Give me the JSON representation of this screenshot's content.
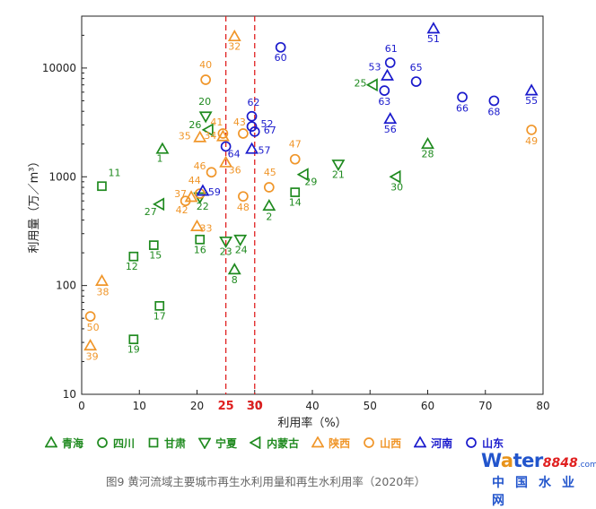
{
  "colors": {
    "qinghai": "#1f8a1f",
    "sichuan": "#1f8a1f",
    "gansu": "#1f8a1f",
    "ningxia": "#1f8a1f",
    "neimenggu": "#1f8a1f",
    "shaanxi": "#f0962a",
    "shanxi": "#f0962a",
    "henan": "#1a1acc",
    "shandong": "#1a1acc",
    "reference": "#e02020"
  },
  "chart_data": {
    "type": "scatter",
    "title": "图9 黄河流域主要城市再生水利用量和再生水利用率（2020年）",
    "xlabel": "利用率（%）",
    "ylabel": "利用量（万／m³）",
    "xlim": [
      0,
      80
    ],
    "ylim": [
      10,
      30000
    ],
    "yscale": "log",
    "x_ticks": [
      "0",
      "10",
      "20",
      "30",
      "40",
      "50",
      "60",
      "70",
      "80"
    ],
    "y_ticks": [
      "10",
      "100",
      "1000",
      "10000"
    ],
    "reference_lines": [
      {
        "x": 25,
        "label": "25"
      },
      {
        "x": 30,
        "label": "30"
      }
    ],
    "series": [
      {
        "name": "青海",
        "marker": "triangle-up",
        "color_key": "qinghai",
        "filled": false,
        "points": [
          {
            "id": "1",
            "x": 14,
            "y": 1800
          },
          {
            "id": "2",
            "x": 32.5,
            "y": 540
          },
          {
            "id": "8",
            "x": 26.5,
            "y": 140
          },
          {
            "id": "28",
            "x": 60,
            "y": 2000
          }
        ]
      },
      {
        "name": "四川",
        "marker": "circle",
        "color_key": "sichuan",
        "filled": false,
        "points": []
      },
      {
        "name": "甘肃",
        "marker": "square",
        "color_key": "gansu",
        "filled": false,
        "points": [
          {
            "id": "11",
            "x": 3.5,
            "y": 820
          },
          {
            "id": "12",
            "x": 9,
            "y": 185
          },
          {
            "id": "14",
            "x": 37,
            "y": 720
          },
          {
            "id": "15",
            "x": 12.5,
            "y": 235
          },
          {
            "id": "16",
            "x": 20.5,
            "y": 265
          },
          {
            "id": "17",
            "x": 13.5,
            "y": 65
          },
          {
            "id": "19",
            "x": 9,
            "y": 32
          }
        ]
      },
      {
        "name": "宁夏",
        "marker": "triangle-down",
        "color_key": "ningxia",
        "filled": false,
        "points": [
          {
            "id": "20",
            "x": 21.5,
            "y": 3600
          },
          {
            "id": "21",
            "x": 44.5,
            "y": 1300
          },
          {
            "id": "22",
            "x": 20.5,
            "y": 650
          },
          {
            "id": "23",
            "x": 25,
            "y": 255
          },
          {
            "id": "24",
            "x": 27.5,
            "y": 265
          }
        ]
      },
      {
        "name": "内蒙古",
        "marker": "triangle-left",
        "color_key": "neimenggu",
        "filled": false,
        "points": [
          {
            "id": "25",
            "x": 50.5,
            "y": 7000
          },
          {
            "id": "26",
            "x": 22,
            "y": 2700
          },
          {
            "id": "27",
            "x": 13.5,
            "y": 560
          },
          {
            "id": "29",
            "x": 38.5,
            "y": 1050
          },
          {
            "id": "30",
            "x": 54.5,
            "y": 1000
          }
        ]
      },
      {
        "name": "陕西",
        "marker": "triangle-up",
        "color_key": "shaanxi",
        "filled": false,
        "points": [
          {
            "id": "32",
            "x": 26.5,
            "y": 19500
          },
          {
            "id": "33",
            "x": 20,
            "y": 350
          },
          {
            "id": "34",
            "x": 24.5,
            "y": 2350
          },
          {
            "id": "35",
            "x": 20.5,
            "y": 2300
          },
          {
            "id": "36",
            "x": 25,
            "y": 1350
          },
          {
            "id": "37",
            "x": 19,
            "y": 650
          },
          {
            "id": "38",
            "x": 3.5,
            "y": 110
          },
          {
            "id": "39",
            "x": 1.5,
            "y": 28
          }
        ]
      },
      {
        "name": "山西",
        "marker": "circle",
        "color_key": "shanxi",
        "filled": false,
        "points": [
          {
            "id": "40",
            "x": 21.5,
            "y": 7800
          },
          {
            "id": "41",
            "x": 24.5,
            "y": 2500
          },
          {
            "id": "42",
            "x": 18,
            "y": 600
          },
          {
            "id": "43",
            "x": 28,
            "y": 2500
          },
          {
            "id": "44",
            "x": 20.5,
            "y": 700
          },
          {
            "id": "45",
            "x": 32.5,
            "y": 800
          },
          {
            "id": "46",
            "x": 22.5,
            "y": 1100
          },
          {
            "id": "47",
            "x": 37,
            "y": 1450
          },
          {
            "id": "48",
            "x": 28,
            "y": 660
          },
          {
            "id": "49",
            "x": 78,
            "y": 2700
          },
          {
            "id": "50",
            "x": 1.5,
            "y": 52
          }
        ]
      },
      {
        "name": "河南",
        "marker": "triangle-up",
        "color_key": "henan",
        "filled": false,
        "points": [
          {
            "id": "51",
            "x": 61,
            "y": 23000
          },
          {
            "id": "53",
            "x": 53,
            "y": 8500
          },
          {
            "id": "55",
            "x": 78,
            "y": 6200
          },
          {
            "id": "56",
            "x": 53.5,
            "y": 3400
          },
          {
            "id": "57",
            "x": 29.5,
            "y": 1800
          },
          {
            "id": "59",
            "x": 21,
            "y": 740
          }
        ]
      },
      {
        "name": "山东",
        "marker": "circle",
        "color_key": "shandong",
        "filled": false,
        "points": [
          {
            "id": "52",
            "x": 29.5,
            "y": 2900
          },
          {
            "id": "60",
            "x": 34.5,
            "y": 15500
          },
          {
            "id": "61",
            "x": 53.5,
            "y": 11200
          },
          {
            "id": "62",
            "x": 29.5,
            "y": 3600
          },
          {
            "id": "63",
            "x": 52.5,
            "y": 6200
          },
          {
            "id": "64",
            "x": 25,
            "y": 1900
          },
          {
            "id": "65",
            "x": 58,
            "y": 7500
          },
          {
            "id": "66",
            "x": 66,
            "y": 5400
          },
          {
            "id": "67",
            "x": 30,
            "y": 2600
          },
          {
            "id": "68",
            "x": 71.5,
            "y": 5000
          }
        ]
      }
    ]
  },
  "caption": "图9 黄河流域主要城市再生水利用量和再生水利用率（2020年）",
  "brand": {
    "name_pre": "W",
    "name_accent": "a",
    "name_post": "ter",
    "number": "8848",
    "suffix": ".com",
    "subtitle": "中国水业网"
  }
}
